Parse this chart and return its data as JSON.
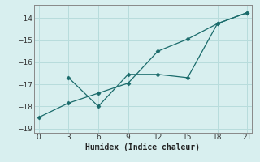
{
  "line1_x": [
    0,
    3,
    6,
    9,
    12,
    15,
    18,
    21
  ],
  "line1_y": [
    -18.5,
    -17.85,
    -17.4,
    -16.95,
    -15.5,
    -14.95,
    -14.25,
    -13.75
  ],
  "line2_x": [
    3,
    6,
    9,
    12,
    15,
    18,
    21
  ],
  "line2_y": [
    -16.7,
    -18.0,
    -16.55,
    -16.55,
    -16.7,
    -14.25,
    -13.75
  ],
  "line_color": "#1a6b6b",
  "marker": "D",
  "marker_size": 2.5,
  "linewidth": 0.9,
  "xlabel": "Humidex (Indice chaleur)",
  "xlim": [
    -0.5,
    21.5
  ],
  "ylim": [
    -19.2,
    -13.4
  ],
  "xticks": [
    0,
    3,
    6,
    9,
    12,
    15,
    18,
    21
  ],
  "yticks": [
    -19,
    -18,
    -17,
    -16,
    -15,
    -14
  ],
  "grid_color": "#b8dcdc",
  "bg_color": "#d8efef",
  "axes_color": "#888888"
}
